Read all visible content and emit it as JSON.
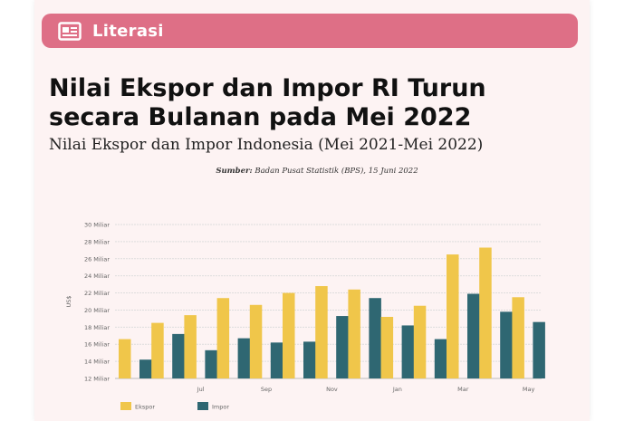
{
  "header": {
    "label": "Literasi",
    "icon": "newspaper-icon"
  },
  "title": "Nilai Ekspor dan Impor RI Turun secara Bulanan pada Mei 2022",
  "subtitle": "Nilai Ekspor dan Impor Indonesia (Mei 2021-Mei 2022)",
  "source": {
    "label": "Sumber:",
    "text": "Badan Pusat Statistik (BPS), 15 Juni 2022"
  },
  "colors": {
    "header": "#de6f86",
    "ekspor": "#f0c64a",
    "impor": "#2f6772",
    "background": "#fdf3f3"
  },
  "chart_data": {
    "type": "bar",
    "ylabel": "US$",
    "ylim": [
      12,
      30
    ],
    "yticks": [
      {
        "value": 12,
        "label": "12 Miliar"
      },
      {
        "value": 14,
        "label": "14 Miliar"
      },
      {
        "value": 16,
        "label": "16 Miliar"
      },
      {
        "value": 18,
        "label": "18 Miliar"
      },
      {
        "value": 20,
        "label": "20 Miliar"
      },
      {
        "value": 22,
        "label": "22 Miliar"
      },
      {
        "value": 24,
        "label": "24 Miliar"
      },
      {
        "value": 26,
        "label": "26 Miliar"
      },
      {
        "value": 28,
        "label": "28 Miliar"
      },
      {
        "value": 30,
        "label": "30 Miliar"
      }
    ],
    "categories": [
      "",
      "",
      "Jul",
      "",
      "Sep",
      "",
      "Nov",
      "",
      "Jan",
      "",
      "Mar",
      "",
      "May"
    ],
    "series": [
      {
        "name": "Ekspor",
        "values": [
          16.6,
          18.5,
          19.4,
          21.4,
          20.6,
          22.0,
          22.8,
          22.4,
          19.2,
          20.5,
          26.5,
          27.3,
          21.5
        ]
      },
      {
        "name": "Impor",
        "values": [
          14.2,
          17.2,
          15.3,
          16.7,
          16.2,
          16.3,
          19.3,
          21.4,
          18.2,
          16.6,
          21.9,
          19.8,
          18.6
        ]
      }
    ],
    "grid": true,
    "legend": "bottom-left"
  }
}
